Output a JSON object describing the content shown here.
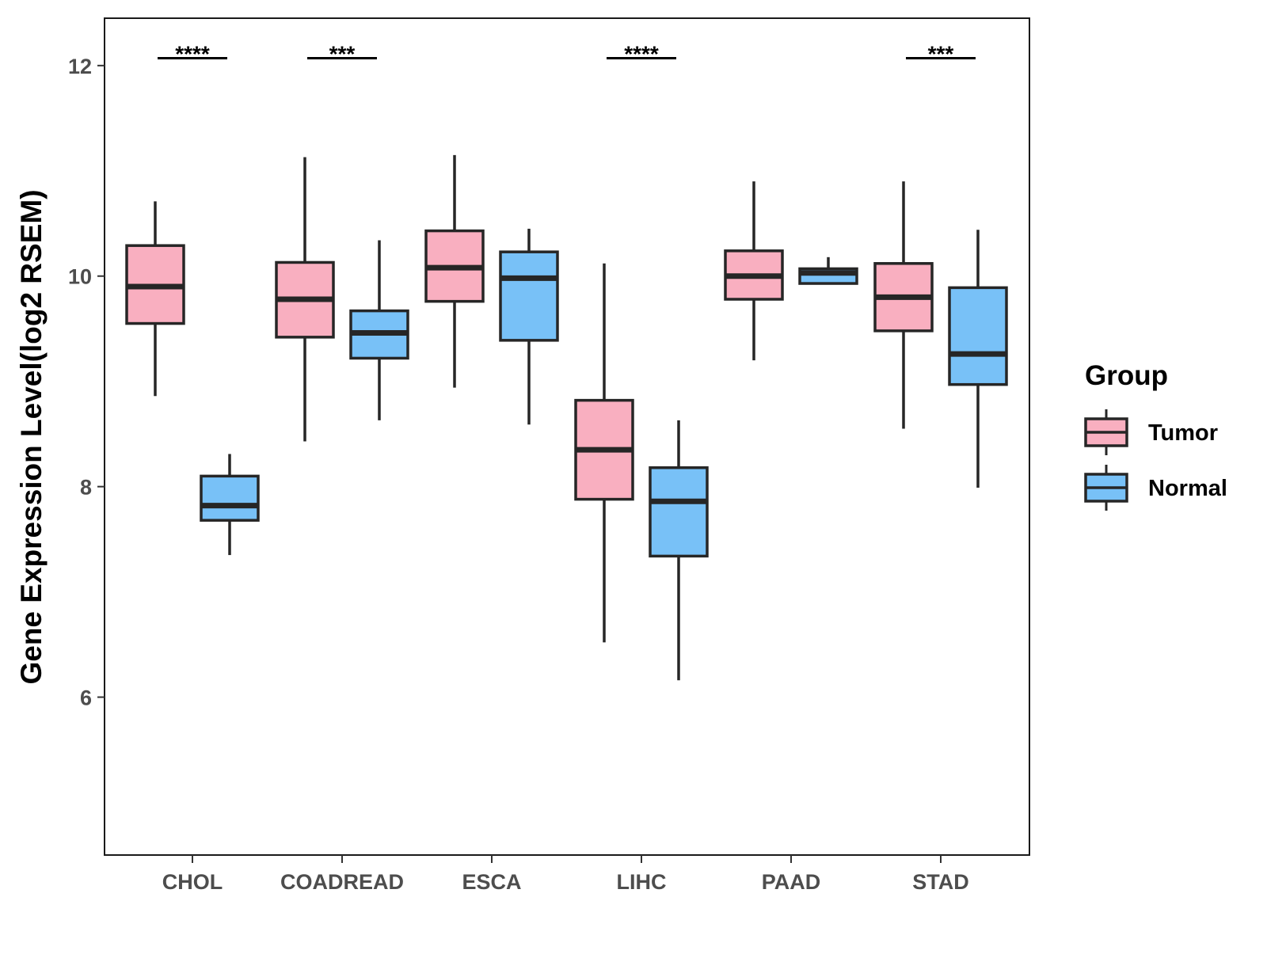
{
  "chart_data": {
    "type": "boxplot",
    "title": "",
    "xlabel": "",
    "ylabel": "Gene Expression Level(log2 RSEM)",
    "ylim": [
      4.5,
      12.45
    ],
    "yticks": [
      6,
      8,
      10,
      12
    ],
    "ytick_labels": [
      "6",
      "8",
      "10",
      "12"
    ],
    "categories": [
      "CHOL",
      "COADREAD",
      "ESCA",
      "LIHC",
      "PAAD",
      "STAD"
    ],
    "legend": {
      "title": "Group",
      "position": "right",
      "entries": [
        "Tumor",
        "Normal"
      ]
    },
    "colors": {
      "Tumor": "#f9afc0",
      "Normal": "#78c1f7",
      "outline": "#262626",
      "panel_border": "#1a1a1a"
    },
    "series": [
      {
        "name": "Tumor",
        "boxes": [
          {
            "category": "CHOL",
            "whisker_low": 8.86,
            "q1": 9.55,
            "median": 9.9,
            "q3": 10.29,
            "whisker_high": 10.71
          },
          {
            "category": "COADREAD",
            "whisker_low": 8.43,
            "q1": 9.42,
            "median": 9.78,
            "q3": 10.13,
            "whisker_high": 11.13
          },
          {
            "category": "ESCA",
            "whisker_low": 8.94,
            "q1": 9.76,
            "median": 10.08,
            "q3": 10.43,
            "whisker_high": 11.15
          },
          {
            "category": "LIHC",
            "whisker_low": 6.52,
            "q1": 7.88,
            "median": 8.35,
            "q3": 8.82,
            "whisker_high": 10.12
          },
          {
            "category": "PAAD",
            "whisker_low": 9.2,
            "q1": 9.78,
            "median": 10.0,
            "q3": 10.24,
            "whisker_high": 10.9
          },
          {
            "category": "STAD",
            "whisker_low": 8.55,
            "q1": 9.48,
            "median": 9.8,
            "q3": 10.12,
            "whisker_high": 10.9
          }
        ]
      },
      {
        "name": "Normal",
        "boxes": [
          {
            "category": "CHOL",
            "whisker_low": 7.35,
            "q1": 7.68,
            "median": 7.82,
            "q3": 8.1,
            "whisker_high": 8.31
          },
          {
            "category": "COADREAD",
            "whisker_low": 8.63,
            "q1": 9.22,
            "median": 9.46,
            "q3": 9.67,
            "whisker_high": 10.34
          },
          {
            "category": "ESCA",
            "whisker_low": 8.59,
            "q1": 9.39,
            "median": 9.98,
            "q3": 10.23,
            "whisker_high": 10.45
          },
          {
            "category": "LIHC",
            "whisker_low": 6.16,
            "q1": 7.34,
            "median": 7.86,
            "q3": 8.18,
            "whisker_high": 8.63
          },
          {
            "category": "PAAD",
            "whisker_low": 9.93,
            "q1": 9.93,
            "median": 10.03,
            "q3": 10.07,
            "whisker_high": 10.18
          },
          {
            "category": "STAD",
            "whisker_low": 7.99,
            "q1": 8.97,
            "median": 9.26,
            "q3": 9.89,
            "whisker_high": 10.44
          }
        ]
      }
    ],
    "annotations": [
      {
        "category": "CHOL",
        "label": "****",
        "y": 12.07
      },
      {
        "category": "COADREAD",
        "label": "***",
        "y": 12.07
      },
      {
        "category": "LIHC",
        "label": "****",
        "y": 12.07
      },
      {
        "category": "STAD",
        "label": "***",
        "y": 12.07
      }
    ]
  }
}
